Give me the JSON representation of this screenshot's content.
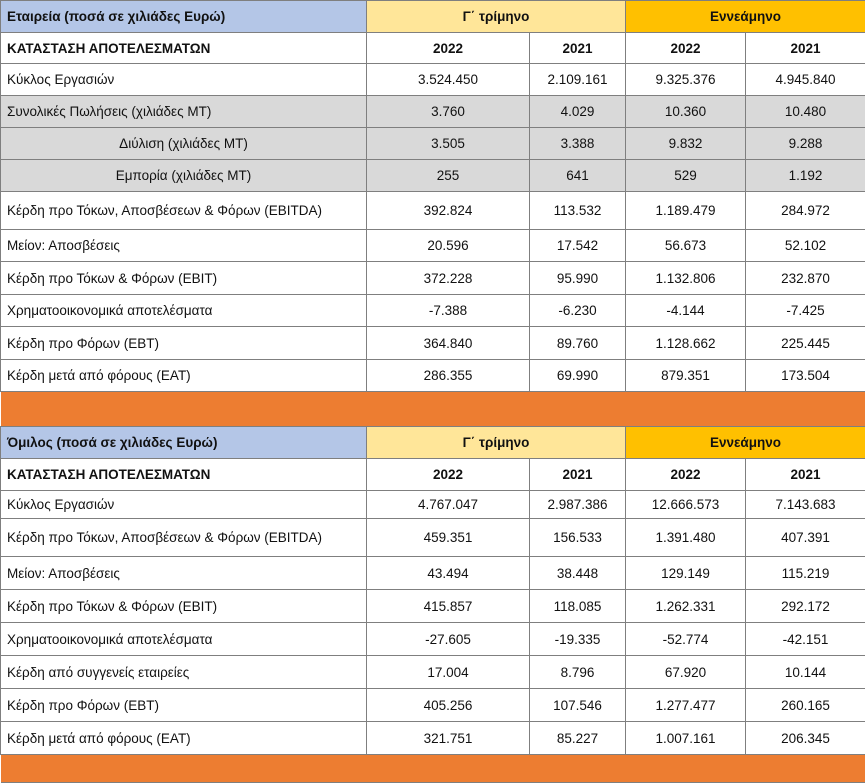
{
  "company": {
    "title": "Εταιρεία (ποσά σε χιλιάδες Ευρώ)",
    "period_q": "Γ΄ τρίμηνο",
    "period_9m": "Εννεάμηνο",
    "statement": "ΚΑΤΑΣΤΑΣΗ ΑΠΟΤΕΛΕΣΜΑΤΩΝ",
    "years": [
      "2022",
      "2021",
      "2022",
      "2021"
    ],
    "rows": [
      {
        "label": "Κύκλος Εργασιών",
        "values": [
          "3.524.450",
          "2.109.161",
          "9.325.376",
          "4.945.840"
        ]
      },
      {
        "label": "Συνολικές Πωλήσεις (χιλιάδες ΜΤ)",
        "values": [
          "3.760",
          "4.029",
          "10.360",
          "10.480"
        ]
      },
      {
        "label": "Διύλιση (χιλιάδες ΜΤ)",
        "values": [
          "3.505",
          "3.388",
          "9.832",
          "9.288"
        ]
      },
      {
        "label": "Εμπορία (χιλιάδες ΜΤ)",
        "values": [
          "255",
          "641",
          "529",
          "1.192"
        ]
      },
      {
        "label": "Κέρδη προ Τόκων, Αποσβέσεων & Φόρων (EBITDA)",
        "values": [
          "392.824",
          "113.532",
          "1.189.479",
          "284.972"
        ]
      },
      {
        "label": "Μείον: Αποσβέσεις",
        "values": [
          "20.596",
          "17.542",
          "56.673",
          "52.102"
        ]
      },
      {
        "label": "Κέρδη προ Τόκων & Φόρων (EBIT)",
        "values": [
          "372.228",
          "95.990",
          "1.132.806",
          "232.870"
        ]
      },
      {
        "label": "Χρηματοοικονομικά αποτελέσματα",
        "values": [
          "-7.388",
          "-6.230",
          "-4.144",
          "-7.425"
        ]
      },
      {
        "label": "Κέρδη προ Φόρων (EBT)",
        "values": [
          "364.840",
          "89.760",
          "1.128.662",
          "225.445"
        ]
      },
      {
        "label": "Κέρδη μετά από φόρους (EAT)",
        "values": [
          "286.355",
          "69.990",
          "879.351",
          "173.504"
        ]
      }
    ]
  },
  "group": {
    "title": "Όμιλος (ποσά σε χιλιάδες Ευρώ)",
    "period_q": "Γ΄ τρίμηνο",
    "period_9m": "Εννεάμηνο",
    "statement": "ΚΑΤΑΣΤΑΣΗ ΑΠΟΤΕΛΕΣΜΑΤΩΝ",
    "years": [
      "2022",
      "2021",
      "2022",
      "2021"
    ],
    "rows": [
      {
        "label": "Κύκλος Εργασιών",
        "values": [
          "4.767.047",
          "2.987.386",
          "12.666.573",
          "7.143.683"
        ]
      },
      {
        "label": "Κέρδη προ Τόκων, Αποσβέσεων & Φόρων (EBITDA)",
        "values": [
          "459.351",
          "156.533",
          "1.391.480",
          "407.391"
        ]
      },
      {
        "label": "Μείον: Αποσβέσεις",
        "values": [
          "43.494",
          "38.448",
          "129.149",
          "115.219"
        ]
      },
      {
        "label": "Κέρδη προ Τόκων & Φόρων (EBIT)",
        "values": [
          "415.857",
          "118.085",
          "1.262.331",
          "292.172"
        ]
      },
      {
        "label": "Χρηματοοικονομικά αποτελέσματα",
        "values": [
          "-27.605",
          "-19.335",
          "-52.774",
          "-42.151"
        ]
      },
      {
        "label": "Κέρδη από συγγενείς εταιρείες",
        "values": [
          "17.004",
          "8.796",
          "67.920",
          "10.144"
        ]
      },
      {
        "label": "Κέρδη προ Φόρων (EBT)",
        "values": [
          "405.256",
          "107.546",
          "1.277.477",
          "260.165"
        ]
      },
      {
        "label": "Κέρδη μετά από φόρους (EAT)",
        "values": [
          "321.751",
          "85.227",
          "1.007.161",
          "206.345"
        ]
      }
    ]
  },
  "colors": {
    "title_bg": "#b4c6e7",
    "quarter_bg": "#ffe699",
    "ninemonth_bg": "#ffc000",
    "grey_row_bg": "#d9d9d9",
    "separator_bg": "#ed7d31"
  }
}
